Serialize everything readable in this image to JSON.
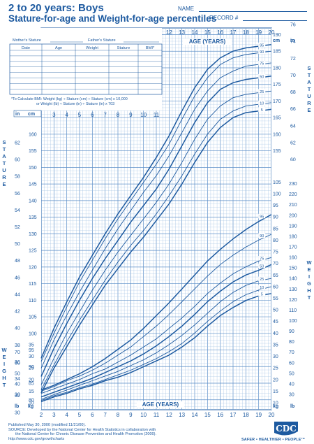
{
  "page": {
    "title_line1": "2 to 20 years: Boys",
    "title_line2": "Stature-for-age and Weight-for-age percentiles",
    "name_label": "NAME",
    "record_label": "RECORD #"
  },
  "table": {
    "mother_label": "Mother's Stature",
    "father_label": "Father's Stature",
    "columns": [
      "Date",
      "Age",
      "Weight",
      "Stature",
      "BMI*"
    ],
    "bmi_note_1": "*To Calculate BMI: Weight (kg) ÷ Stature (cm) ÷ Stature (cm) x 10,000",
    "bmi_note_2": "or Weight (lb) ÷ Stature (in) ÷ Stature (in) x 703"
  },
  "footer": {
    "line1": "Published May 30, 2000 (modified 11/21/00).",
    "line2": "SOURCE: Developed by the National Center for Health Statistics in collaboration with",
    "line3": "the National Center for Chronic Disease Prevention and Health Promotion (2000).",
    "line4": "http://www.cdc.gov/growthcharts",
    "logo_text": "CDC",
    "tagline": "SAFER • HEALTHIER • PEOPLE™"
  },
  "colors": {
    "primary": "#1d5aa0",
    "grid": "#9dbfe3",
    "grid_major": "#5d8fc8"
  },
  "chart_data": {
    "type": "line",
    "x_label_top": "AGE (YEARS)",
    "x_label_bottom": "AGE (YEARS)",
    "xlim": [
      2,
      20
    ],
    "x_ticks": [
      2,
      3,
      4,
      5,
      6,
      7,
      8,
      9,
      10,
      11,
      12,
      13,
      14,
      15,
      16,
      17,
      18,
      19,
      20
    ],
    "stature": {
      "unit_cm": "cm",
      "unit_in": "in",
      "side_label": "STATURE",
      "ylim_cm": [
        77,
        192
      ],
      "cm_ticks": [
        80,
        85,
        90,
        95,
        100,
        105,
        110,
        115,
        120,
        125,
        130,
        135,
        140,
        145,
        150,
        155,
        160,
        165,
        170,
        175,
        180,
        185,
        190
      ],
      "in_ticks": [
        30,
        32,
        34,
        36,
        38,
        40,
        42,
        44,
        46,
        48,
        50,
        52,
        54,
        56,
        58,
        60,
        62,
        64,
        66,
        68,
        70,
        72,
        74,
        76
      ],
      "ages": [
        2,
        3,
        4,
        5,
        6,
        7,
        8,
        9,
        10,
        11,
        12,
        13,
        14,
        15,
        16,
        17,
        18,
        19,
        20
      ],
      "series": [
        {
          "name": "95",
          "values": [
            92.5,
            101.5,
            109.5,
            117,
            123.5,
            130,
            136,
            141.5,
            147,
            153,
            159.5,
            167,
            174,
            179.5,
            183,
            185,
            186,
            186.5,
            187
          ]
        },
        {
          "name": "90",
          "values": [
            91.5,
            100,
            108,
            115.5,
            122,
            128.5,
            134.5,
            140,
            145.5,
            151,
            157,
            164.5,
            171.5,
            177,
            181,
            183,
            184,
            184.5,
            185
          ]
        },
        {
          "name": "75",
          "values": [
            89.5,
            98,
            105.5,
            112.5,
            119,
            125.5,
            131.5,
            137,
            142.5,
            147.5,
            153.5,
            160.5,
            167.5,
            173,
            177,
            179,
            180.5,
            181,
            181.5
          ]
        },
        {
          "name": "50",
          "values": [
            87,
            95.5,
            103,
            110,
            116.5,
            122.5,
            128,
            133.5,
            138.5,
            143.5,
            149.5,
            156.5,
            163.5,
            169.5,
            173.5,
            175.5,
            176.5,
            177,
            177.5
          ]
        },
        {
          "name": "25",
          "values": [
            84.5,
            92.5,
            100,
            106.5,
            113,
            119,
            124.5,
            129.5,
            134.5,
            139.5,
            145,
            151.5,
            158.5,
            164.5,
            168.5,
            171,
            172,
            172.5,
            173
          ]
        },
        {
          "name": "10",
          "values": [
            83,
            90.5,
            97.5,
            104,
            110,
            116,
            121.5,
            126.5,
            131,
            136,
            141.5,
            147.5,
            154,
            160,
            164.5,
            167,
            168.5,
            169,
            169.5
          ]
        },
        {
          "name": "5",
          "values": [
            82,
            89.5,
            96,
            102.5,
            108.5,
            114.5,
            119.5,
            124.5,
            129,
            134,
            139,
            145,
            151.5,
            157.5,
            162,
            165,
            166.5,
            167,
            167.5
          ]
        }
      ]
    },
    "weight": {
      "unit_kg": "kg",
      "unit_lb": "lb",
      "side_label": "WEIGHT",
      "ylim_kg": [
        7,
        106
      ],
      "kg_ticks": [
        10,
        15,
        20,
        25,
        30,
        35,
        40,
        45,
        50,
        55,
        60,
        65,
        70,
        75,
        80,
        85,
        90,
        95,
        100,
        105
      ],
      "lb_ticks": [
        30,
        40,
        50,
        60,
        70,
        80,
        90,
        100,
        110,
        120,
        130,
        140,
        150,
        160,
        170,
        180,
        190,
        200,
        210,
        220,
        230
      ],
      "ages": [
        2,
        3,
        4,
        5,
        6,
        7,
        8,
        9,
        10,
        11,
        12,
        13,
        14,
        15,
        16,
        17,
        18,
        19,
        20
      ],
      "series": [
        {
          "name": "95",
          "values": [
            15.5,
            17.5,
            20,
            22.5,
            25.5,
            29,
            33,
            37,
            42,
            47.5,
            53,
            59,
            65,
            71,
            76,
            80.5,
            84.5,
            88,
            91
          ]
        },
        {
          "name": "90",
          "values": [
            15,
            17,
            19.5,
            21.5,
            24,
            27,
            30.5,
            34,
            38.5,
            43,
            48,
            53.5,
            59,
            64.5,
            69.5,
            73.5,
            77,
            80,
            82.5
          ]
        },
        {
          "name": "75",
          "values": [
            14,
            16,
            18,
            20,
            22.5,
            24.5,
            27.5,
            30.5,
            34,
            37.5,
            42,
            46.5,
            51.5,
            57,
            61.5,
            65.5,
            68.5,
            71,
            72.5
          ]
        },
        {
          "name": "50",
          "values": [
            12.5,
            14.5,
            16.5,
            18.5,
            20.5,
            23,
            25.5,
            28,
            31,
            34.5,
            38.5,
            43,
            48,
            53.5,
            58,
            62,
            65,
            67,
            69.5
          ]
        },
        {
          "name": "25",
          "values": [
            11.5,
            13.5,
            15.5,
            17.5,
            19.5,
            21.5,
            23.5,
            26,
            28.5,
            31.5,
            35,
            39,
            43.5,
            48.5,
            53.5,
            57.5,
            60.5,
            62.5,
            63.5
          ]
        },
        {
          "name": "10",
          "values": [
            11,
            13,
            14.5,
            16.5,
            18,
            20,
            22,
            24,
            26.5,
            29,
            32,
            35.5,
            40,
            45,
            49.5,
            53.5,
            56.5,
            58.5,
            60
          ]
        },
        {
          "name": "5",
          "values": [
            10.5,
            12.5,
            14,
            16,
            17.5,
            19.5,
            21,
            23,
            25.5,
            28,
            30.5,
            34,
            38,
            43,
            47.5,
            51,
            54,
            56,
            57
          ]
        }
      ]
    }
  }
}
